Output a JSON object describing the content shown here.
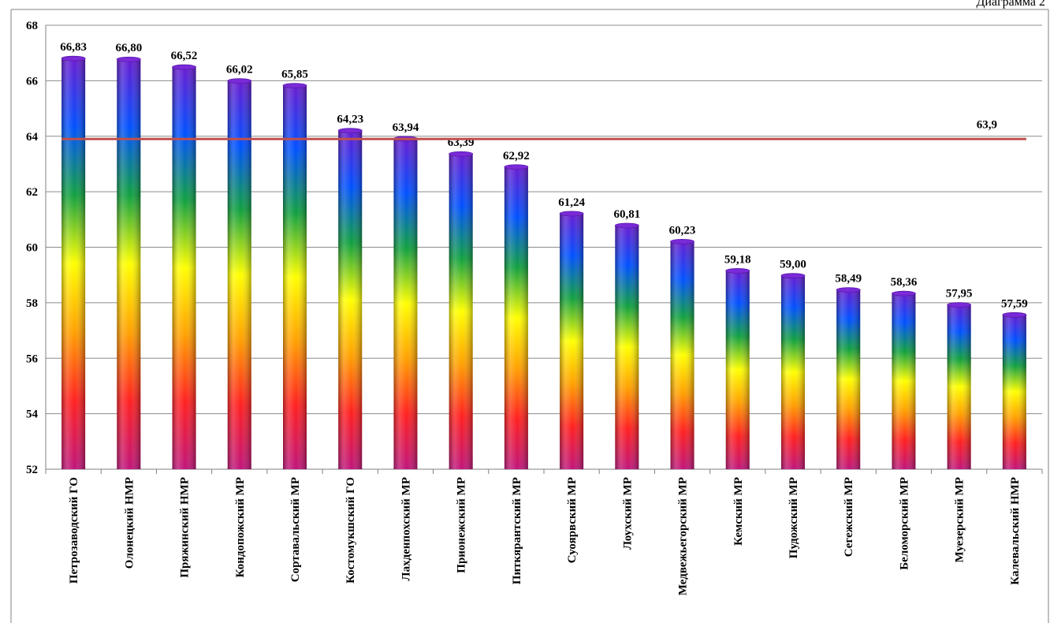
{
  "caption": "Диаграмма 2",
  "chart_data": {
    "type": "bar",
    "categories": [
      "Петрозаводский ГО",
      "Олонецкий НМР",
      "Пряжинский НМР",
      "Кондопожский МР",
      "Сортавальский МР",
      "Костомукшский ГО",
      "Лахденпохский МР",
      "Прионежский МР",
      "Питкярантский МР",
      "Суоярвский МР",
      "Лоухский МР",
      "Медвежьегорский МР",
      "Кемский МР",
      "Пудожский МР",
      "Сегежский МР",
      "Беломорский МР",
      "Муезерский МР",
      "Калевальский НМР"
    ],
    "values": [
      66.83,
      66.8,
      66.52,
      66.02,
      65.85,
      64.23,
      63.94,
      63.39,
      62.92,
      61.24,
      60.81,
      60.23,
      59.18,
      59.0,
      58.49,
      58.36,
      57.95,
      57.59
    ],
    "data_labels": [
      "66,83",
      "66,80",
      "66,52",
      "66,02",
      "65,85",
      "64,23",
      "63,94",
      "63,39",
      "62,92",
      "61,24",
      "60,81",
      "60,23",
      "59,18",
      "59,00",
      "58,49",
      "58,36",
      "57,95",
      "57,59"
    ],
    "reference_line": {
      "value": 63.9,
      "label": "63,9",
      "color": "#c0504d"
    },
    "ylim": [
      52,
      68
    ],
    "yticks": [
      52,
      54,
      56,
      58,
      60,
      62,
      64,
      66,
      68
    ],
    "grid": true,
    "legend": "none",
    "bar_gradient": [
      "#c0157a",
      "#ff2020",
      "#ffa000",
      "#ffff00",
      "#10a040",
      "#0050ff",
      "#6a1bd0"
    ]
  }
}
